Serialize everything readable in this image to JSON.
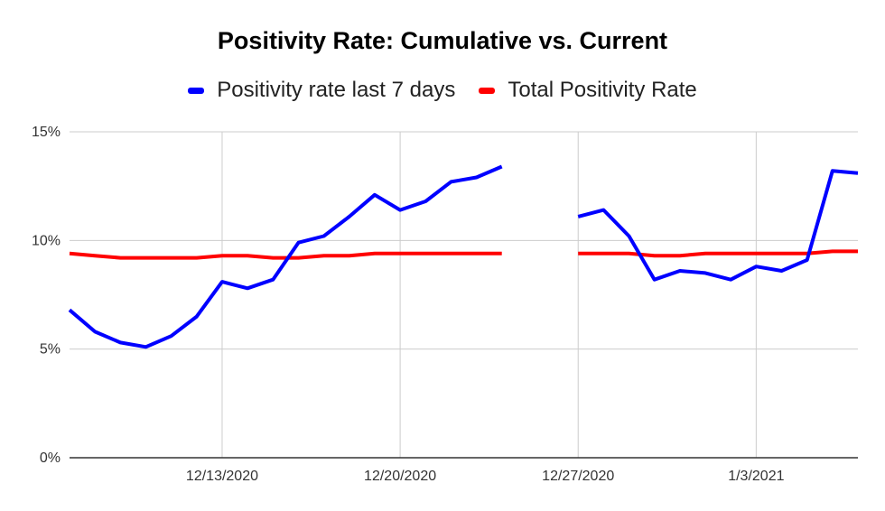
{
  "chart_data": {
    "type": "line",
    "title": "Positivity Rate: Cumulative vs. Current",
    "x_tick_labels": [
      "12/13/2020",
      "12/20/2020",
      "12/27/2020",
      "1/3/2021"
    ],
    "y_tick_labels": [
      "0%",
      "5%",
      "10%",
      "15%"
    ],
    "ylim": [
      0,
      15
    ],
    "xlim": [
      "2020-12-07",
      "2021-01-07"
    ],
    "grid": true,
    "legend_position": "top",
    "x": [
      "2020-12-07",
      "2020-12-08",
      "2020-12-09",
      "2020-12-10",
      "2020-12-11",
      "2020-12-12",
      "2020-12-13",
      "2020-12-14",
      "2020-12-15",
      "2020-12-16",
      "2020-12-17",
      "2020-12-18",
      "2020-12-19",
      "2020-12-20",
      "2020-12-21",
      "2020-12-22",
      "2020-12-23",
      "2020-12-24",
      "2020-12-25",
      "2020-12-26",
      "2020-12-27",
      "2020-12-28",
      "2020-12-29",
      "2020-12-30",
      "2020-12-31",
      "2021-01-01",
      "2021-01-02",
      "2021-01-03",
      "2021-01-04",
      "2021-01-05",
      "2021-01-06",
      "2021-01-07"
    ],
    "series": [
      {
        "name": "Positivity rate last 7 days",
        "color": "#0000ff",
        "values": [
          6.8,
          5.8,
          5.3,
          5.1,
          5.6,
          6.5,
          8.1,
          7.8,
          8.2,
          9.9,
          10.2,
          11.1,
          12.1,
          11.4,
          11.8,
          12.7,
          12.9,
          13.4,
          null,
          null,
          11.1,
          11.4,
          10.2,
          8.2,
          8.6,
          8.5,
          8.2,
          8.8,
          8.6,
          9.1,
          13.2,
          13.1
        ]
      },
      {
        "name": "Total Positivity Rate",
        "color": "#ff0000",
        "values": [
          9.4,
          9.3,
          9.2,
          9.2,
          9.2,
          9.2,
          9.3,
          9.3,
          9.2,
          9.2,
          9.3,
          9.3,
          9.4,
          9.4,
          9.4,
          9.4,
          9.4,
          9.4,
          null,
          null,
          9.4,
          9.4,
          9.4,
          9.3,
          9.3,
          9.4,
          9.4,
          9.4,
          9.4,
          9.4,
          9.5,
          9.5
        ]
      }
    ]
  }
}
